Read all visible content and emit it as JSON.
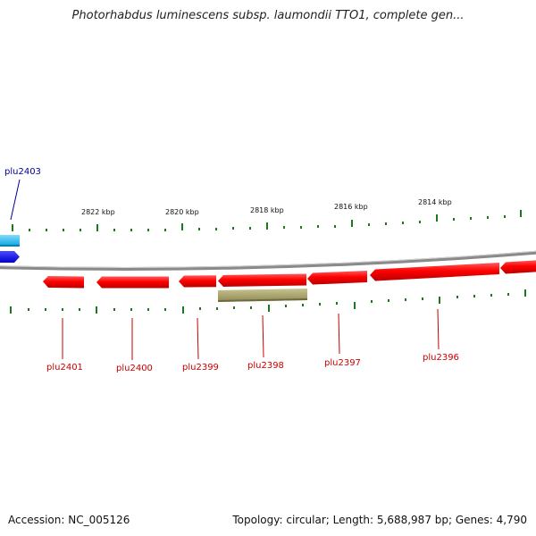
{
  "title": "Photorhabdus luminescens subsp. laumondii TTO1, complete gen...",
  "accession": "Accession: NC_005126",
  "summary": "Topology: circular; Length: 5,688,987 bp; Genes: 4,790",
  "colors": {
    "backbone": "#8a8a8a",
    "gene_forward": "#0000ff",
    "gene_forward_light": "#22b8ee",
    "gene_reverse": "#ff0000",
    "gene_label_reverse": "#cc0000",
    "gene_label_forward": "#000099",
    "tick": "#1a7a1a",
    "feature_olive": "#a9a46a"
  },
  "ticks": {
    "labels": [
      "2822 kbp",
      "2820 kbp",
      "2818 kbp",
      "2816 kbp",
      "2814 kbp"
    ]
  },
  "genes": [
    {
      "name": "plu2403",
      "strand": "forward"
    },
    {
      "name": "plu2401",
      "strand": "reverse"
    },
    {
      "name": "plu2400",
      "strand": "reverse"
    },
    {
      "name": "plu2399",
      "strand": "reverse"
    },
    {
      "name": "plu2398",
      "strand": "reverse"
    },
    {
      "name": "plu2397",
      "strand": "reverse"
    },
    {
      "name": "plu2396",
      "strand": "reverse"
    }
  ]
}
